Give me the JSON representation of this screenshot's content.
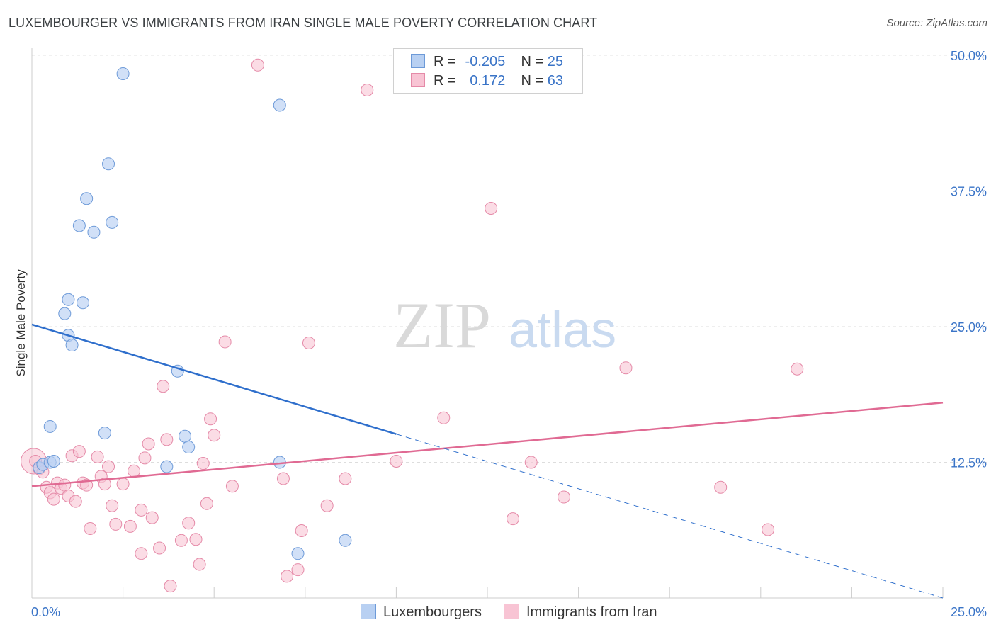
{
  "title": "LUXEMBOURGER VS IMMIGRANTS FROM IRAN SINGLE MALE POVERTY CORRELATION CHART",
  "source": "Source: ZipAtlas.com",
  "watermark": {
    "zip": "ZIP",
    "atlas": "atlas"
  },
  "legend": {
    "series1": {
      "r_label": "R =",
      "r_value": "-0.205",
      "n_label": "N =",
      "n_value": "25"
    },
    "series2": {
      "r_label": "R =",
      "r_value": "0.172",
      "n_label": "N =",
      "n_value": "63"
    }
  },
  "bottom_legend": {
    "series1": "Luxembourgers",
    "series2": "Immigrants from Iran"
  },
  "colors": {
    "blue_fill": "#b8d0f2",
    "blue_stroke": "#6d9ad8",
    "blue_line": "#2f6fcc",
    "pink_fill": "#f8c4d4",
    "pink_stroke": "#e58aa8",
    "pink_line": "#e06a93",
    "axis_label": "#3a74c7"
  },
  "chart_data": {
    "type": "scatter",
    "title": "LUXEMBOURGER VS IMMIGRANTS FROM IRAN SINGLE MALE POVERTY CORRELATION CHART",
    "xlabel": "",
    "ylabel": "Single Male Poverty",
    "xlim": [
      0,
      25
    ],
    "ylim": [
      0,
      50
    ],
    "x_tick_labels": [
      "0.0%",
      "25.0%"
    ],
    "y_ticks": [
      12.5,
      25.0,
      37.5,
      50.0
    ],
    "y_tick_labels": [
      "12.5%",
      "25.0%",
      "37.5%",
      "50.0%"
    ],
    "grid": true,
    "series": [
      {
        "name": "Luxembourgers",
        "r": -0.205,
        "n": 25,
        "trend": {
          "x0": 0,
          "y0": 25.2,
          "x1": 10,
          "y1": 15.1,
          "dash_to_x": 25,
          "dash_to_y": 0
        },
        "points": [
          [
            0.2,
            12.0
          ],
          [
            0.3,
            12.3
          ],
          [
            0.5,
            12.5
          ],
          [
            0.6,
            12.6
          ],
          [
            0.5,
            15.8
          ],
          [
            0.9,
            26.2
          ],
          [
            1.0,
            24.2
          ],
          [
            1.0,
            27.5
          ],
          [
            1.1,
            23.3
          ],
          [
            1.4,
            27.2
          ],
          [
            1.3,
            34.3
          ],
          [
            1.5,
            36.8
          ],
          [
            1.7,
            33.7
          ],
          [
            2.0,
            15.2
          ],
          [
            2.1,
            40.0
          ],
          [
            2.2,
            34.6
          ],
          [
            2.5,
            48.3
          ],
          [
            3.7,
            12.1
          ],
          [
            4.0,
            20.9
          ],
          [
            4.2,
            14.9
          ],
          [
            4.3,
            13.9
          ],
          [
            6.8,
            12.5
          ],
          [
            6.8,
            45.4
          ],
          [
            7.3,
            4.1
          ],
          [
            8.6,
            5.3
          ]
        ]
      },
      {
        "name": "Immigrants from Iran",
        "r": 0.172,
        "n": 63,
        "trend": {
          "x0": 0,
          "y0": 10.3,
          "x1": 25,
          "y1": 18.0
        },
        "points": [
          [
            0.1,
            12.6
          ],
          [
            0.2,
            11.9
          ],
          [
            0.3,
            11.6
          ],
          [
            0.4,
            10.2
          ],
          [
            0.5,
            9.7
          ],
          [
            0.6,
            9.1
          ],
          [
            0.7,
            10.6
          ],
          [
            0.8,
            10.1
          ],
          [
            0.9,
            10.4
          ],
          [
            1.0,
            9.4
          ],
          [
            1.1,
            13.1
          ],
          [
            1.2,
            8.9
          ],
          [
            1.3,
            13.5
          ],
          [
            1.4,
            10.6
          ],
          [
            1.5,
            10.4
          ],
          [
            1.6,
            6.4
          ],
          [
            1.8,
            13.0
          ],
          [
            1.9,
            11.2
          ],
          [
            2.0,
            10.5
          ],
          [
            2.1,
            12.1
          ],
          [
            2.2,
            8.5
          ],
          [
            2.3,
            6.8
          ],
          [
            2.5,
            10.5
          ],
          [
            2.7,
            6.6
          ],
          [
            2.8,
            11.7
          ],
          [
            3.0,
            8.1
          ],
          [
            3.0,
            4.1
          ],
          [
            3.1,
            12.9
          ],
          [
            3.2,
            14.2
          ],
          [
            3.3,
            7.4
          ],
          [
            3.5,
            4.6
          ],
          [
            3.6,
            19.5
          ],
          [
            3.7,
            14.6
          ],
          [
            3.8,
            1.1
          ],
          [
            4.1,
            5.3
          ],
          [
            4.3,
            6.9
          ],
          [
            4.5,
            5.4
          ],
          [
            4.6,
            3.1
          ],
          [
            4.7,
            12.4
          ],
          [
            4.8,
            8.7
          ],
          [
            4.9,
            16.5
          ],
          [
            5.0,
            15.0
          ],
          [
            5.3,
            23.6
          ],
          [
            5.5,
            10.3
          ],
          [
            6.2,
            49.1
          ],
          [
            6.9,
            11.0
          ],
          [
            7.0,
            2.0
          ],
          [
            7.3,
            2.6
          ],
          [
            7.4,
            6.2
          ],
          [
            7.6,
            23.5
          ],
          [
            8.1,
            8.5
          ],
          [
            8.6,
            11.0
          ],
          [
            9.2,
            46.8
          ],
          [
            10.0,
            12.6
          ],
          [
            11.3,
            16.6
          ],
          [
            12.6,
            35.9
          ],
          [
            13.2,
            7.3
          ],
          [
            13.7,
            12.5
          ],
          [
            14.6,
            9.3
          ],
          [
            16.3,
            21.2
          ],
          [
            18.9,
            10.2
          ],
          [
            21.0,
            21.1
          ],
          [
            20.2,
            6.3
          ]
        ]
      }
    ]
  }
}
